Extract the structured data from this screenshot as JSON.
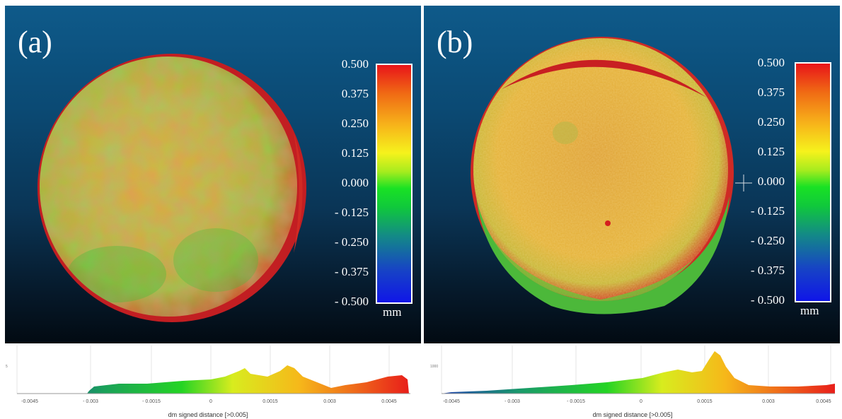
{
  "panels": [
    {
      "label": "(a)",
      "colorbar": {
        "ticks": [
          "0.500",
          "0.375",
          "0.250",
          "0.125",
          "0.000",
          "- 0.125",
          "- 0.250",
          "- 0.375",
          "- 0.500"
        ],
        "unit": "mm"
      },
      "histogram": {
        "x_ticks": [
          "-0.0045",
          "- 0.003",
          "- 0.0015",
          "0",
          "0.0015",
          "0.003",
          "0.0045"
        ],
        "y_tick": "5",
        "xlabel": "dm signed distance [>0.005]"
      }
    },
    {
      "label": "(b)",
      "colorbar": {
        "ticks": [
          "0.500",
          "0.375",
          "0.250",
          "0.125",
          "0.000",
          "- 0.125",
          "- 0.250",
          "- 0.375",
          "- 0.500"
        ],
        "unit": "mm"
      },
      "histogram": {
        "x_ticks": [
          "-0.0045",
          "- 0.003",
          "- 0.0015",
          "0",
          "0.0015",
          "0.003",
          "0.0045"
        ],
        "y_tick": "1000",
        "xlabel": "dm signed distance [>0.005]"
      }
    }
  ],
  "colors": {
    "background_top": "#0e5a8a",
    "background_bottom": "#020a12",
    "scale_red": "#e8141a",
    "scale_yellow": "#f6f21c",
    "scale_green": "#19e224",
    "scale_blue": "#1016e8"
  }
}
